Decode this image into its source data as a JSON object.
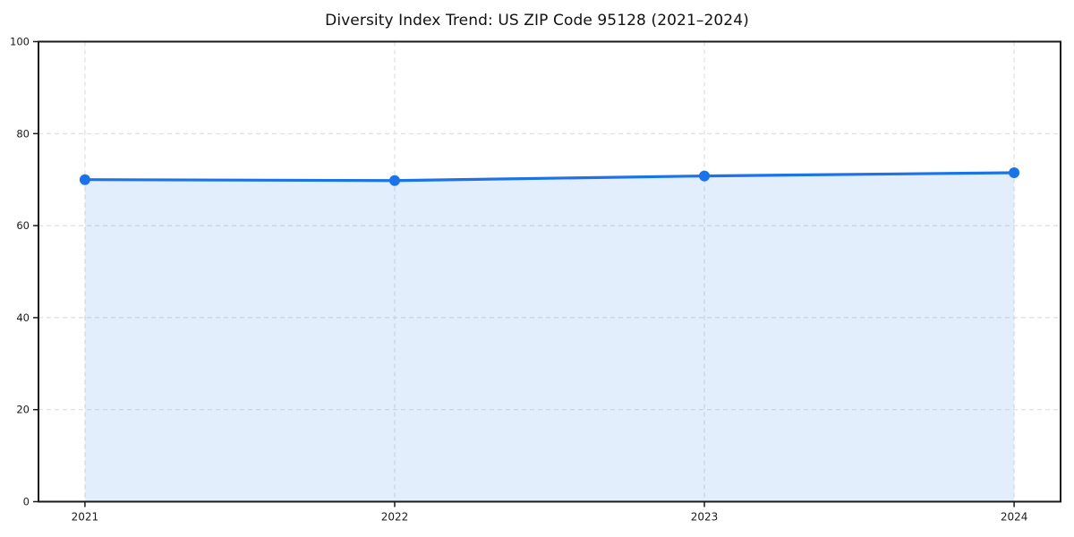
{
  "figure": {
    "background": "#ffffff"
  },
  "chart_data": {
    "type": "line",
    "title": "Diversity Index Trend: US ZIP Code 95128 (2021–2024)",
    "x": [
      2021,
      2022,
      2023,
      2024
    ],
    "values": [
      70.0,
      69.8,
      70.8,
      71.5
    ],
    "xlabel": "",
    "ylabel": "",
    "xlim": [
      2020.85,
      2024.15
    ],
    "ylim": [
      0,
      100
    ],
    "xticks": [
      2021,
      2022,
      2023,
      2024
    ],
    "yticks": [
      0,
      20,
      40,
      60,
      80,
      100
    ],
    "grid": true,
    "legend": false,
    "area_fill": true,
    "markers": true,
    "colors": {
      "line": "#1a73e8",
      "marker": "#1a73e8",
      "fill": "rgba(26,115,232,0.12)",
      "grid": "#dedede",
      "spine": "#1a1a1a",
      "tick_label": "#1a1a1a",
      "title": "#111111"
    }
  }
}
